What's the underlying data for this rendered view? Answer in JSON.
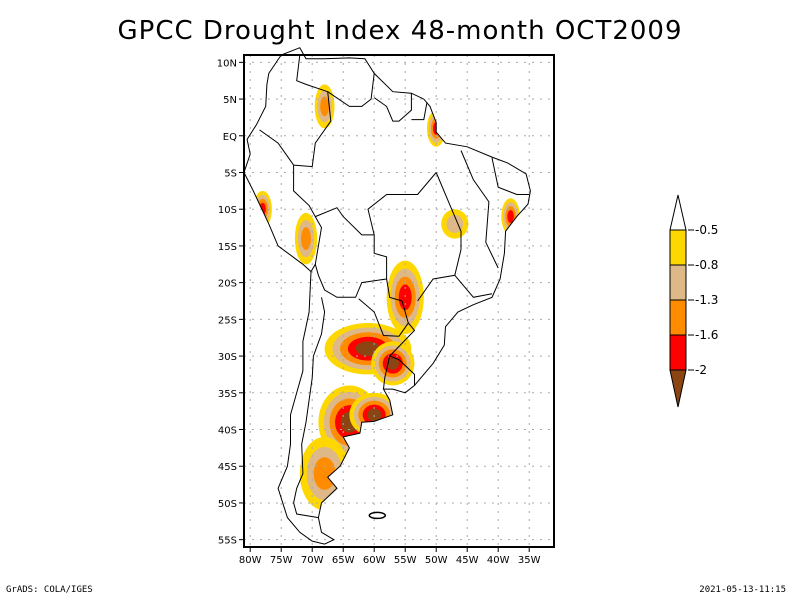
{
  "title": "GPCC Drought Index 48-month OCT2009",
  "footer": {
    "left": "GrADS: COLA/IGES",
    "right": "2021-05-13-11:15"
  },
  "map": {
    "region": "South America",
    "lon_range": [
      -81,
      -31
    ],
    "lat_range": [
      11,
      -56
    ],
    "lat_ticks": [
      {
        "value": 10,
        "label": "10N"
      },
      {
        "value": 5,
        "label": "5N"
      },
      {
        "value": 0,
        "label": "EQ"
      },
      {
        "value": -5,
        "label": "5S"
      },
      {
        "value": -10,
        "label": "10S"
      },
      {
        "value": -15,
        "label": "15S"
      },
      {
        "value": -20,
        "label": "20S"
      },
      {
        "value": -25,
        "label": "25S"
      },
      {
        "value": -30,
        "label": "30S"
      },
      {
        "value": -35,
        "label": "35S"
      },
      {
        "value": -40,
        "label": "40S"
      },
      {
        "value": -45,
        "label": "45S"
      },
      {
        "value": -50,
        "label": "50S"
      },
      {
        "value": -55,
        "label": "55S"
      }
    ],
    "lon_ticks": [
      {
        "value": -80,
        "label": "80W"
      },
      {
        "value": -75,
        "label": "75W"
      },
      {
        "value": -70,
        "label": "70W"
      },
      {
        "value": -65,
        "label": "65W"
      },
      {
        "value": -60,
        "label": "60W"
      },
      {
        "value": -55,
        "label": "55W"
      },
      {
        "value": -50,
        "label": "50W"
      },
      {
        "value": -45,
        "label": "45W"
      },
      {
        "value": -40,
        "label": "40W"
      },
      {
        "value": -35,
        "label": "35W"
      }
    ],
    "grid": true
  },
  "legend": {
    "levels": [
      {
        "label": "-0.5",
        "color": "#ffd700"
      },
      {
        "label": "-0.8",
        "color": "#deb887"
      },
      {
        "label": "-1.3",
        "color": "#ff8c00"
      },
      {
        "label": "-1.6",
        "color": "#ff0000"
      },
      {
        "label": "-2",
        "color": "#8b4513"
      }
    ],
    "top_arrow_color": "#ffffff",
    "bottom_arrow_color": "#8b4513"
  },
  "drought_areas": [
    {
      "name": "central-argentina-north",
      "lon": -61,
      "lat": -29,
      "max_class": 5
    },
    {
      "name": "uruguay-northeast-argentina",
      "lon": -57,
      "lat": -31,
      "max_class": 5
    },
    {
      "name": "central-argentina-south",
      "lon": -64,
      "lat": -39,
      "max_class": 5
    },
    {
      "name": "buenos-aires-south",
      "lon": -60,
      "lat": -38,
      "max_class": 5
    },
    {
      "name": "patagonia",
      "lon": -68,
      "lat": -46,
      "max_class": 3
    },
    {
      "name": "paraguay-parana",
      "lon": -55,
      "lat": -22,
      "max_class": 4
    },
    {
      "name": "northeast-brazil-coast",
      "lon": -38,
      "lat": -11,
      "max_class": 4
    },
    {
      "name": "amapa-para",
      "lon": -50,
      "lat": 1,
      "max_class": 4
    },
    {
      "name": "peru-coast",
      "lon": -78,
      "lat": -10,
      "max_class": 4
    },
    {
      "name": "bolivia-peru",
      "lon": -71,
      "lat": -14,
      "max_class": 3
    },
    {
      "name": "colombia-venezuela",
      "lon": -68,
      "lat": 4,
      "max_class": 3
    },
    {
      "name": "central-brazil",
      "lon": -47,
      "lat": -12,
      "max_class": 2
    }
  ]
}
